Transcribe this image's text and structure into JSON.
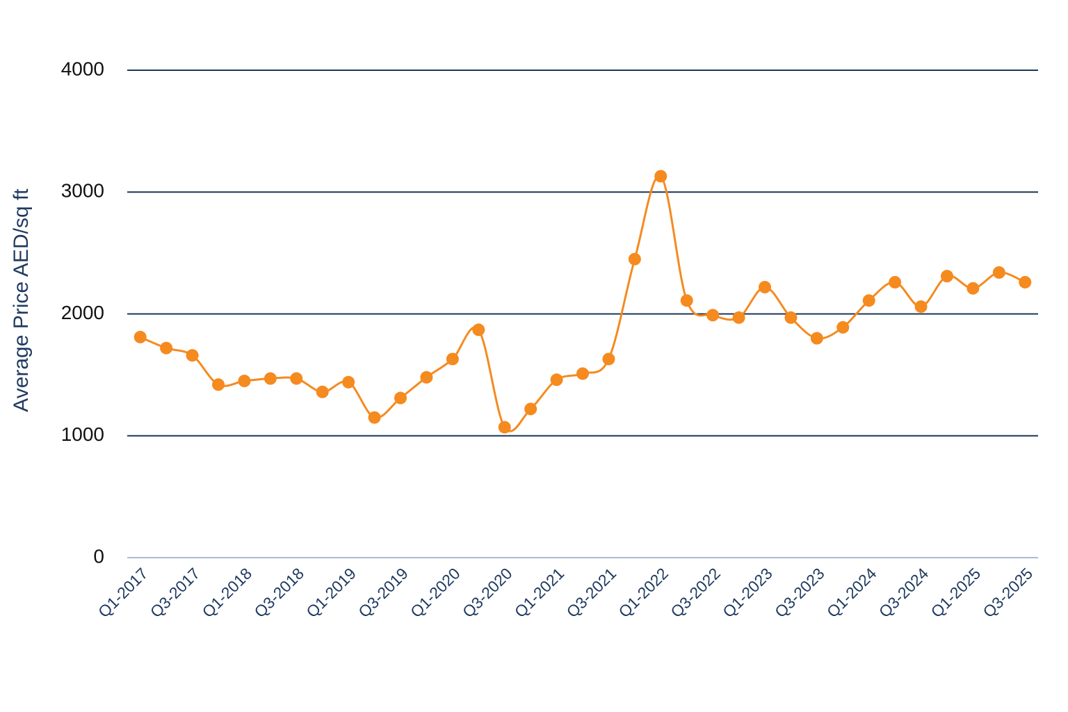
{
  "chart_data": {
    "type": "line",
    "y_label": "Average Price AED/sq ft",
    "categories": [
      "Q1-2017",
      null,
      "Q3-2017",
      null,
      "Q1-2018",
      null,
      "Q3-2018",
      null,
      "Q1-2019",
      null,
      "Q3-2019",
      null,
      "Q1-2020",
      null,
      "Q3-2020",
      null,
      "Q1-2021",
      null,
      "Q3-2021",
      null,
      "Q1-2022",
      null,
      "Q3-2022",
      null,
      "Q1-2023",
      null,
      "Q3-2023",
      null,
      "Q1-2024",
      null,
      "Q3-2024",
      null,
      "Q1-2025",
      null,
      "Q3-2025"
    ],
    "values": [
      1810,
      1720,
      1660,
      1420,
      1450,
      1470,
      1470,
      1360,
      1440,
      1150,
      1310,
      1480,
      1630,
      1870,
      1070,
      1220,
      1460,
      1510,
      1630,
      2450,
      3130,
      2110,
      1990,
      1970,
      2220,
      1970,
      1800,
      1890,
      2110,
      2260,
      2060,
      2310,
      2210,
      2340,
      2260
    ],
    "color": "#f58a1f",
    "ylim": [
      0,
      4000
    ],
    "yticks": [
      0,
      1000,
      2000,
      3000,
      4000
    ],
    "grid": true
  }
}
